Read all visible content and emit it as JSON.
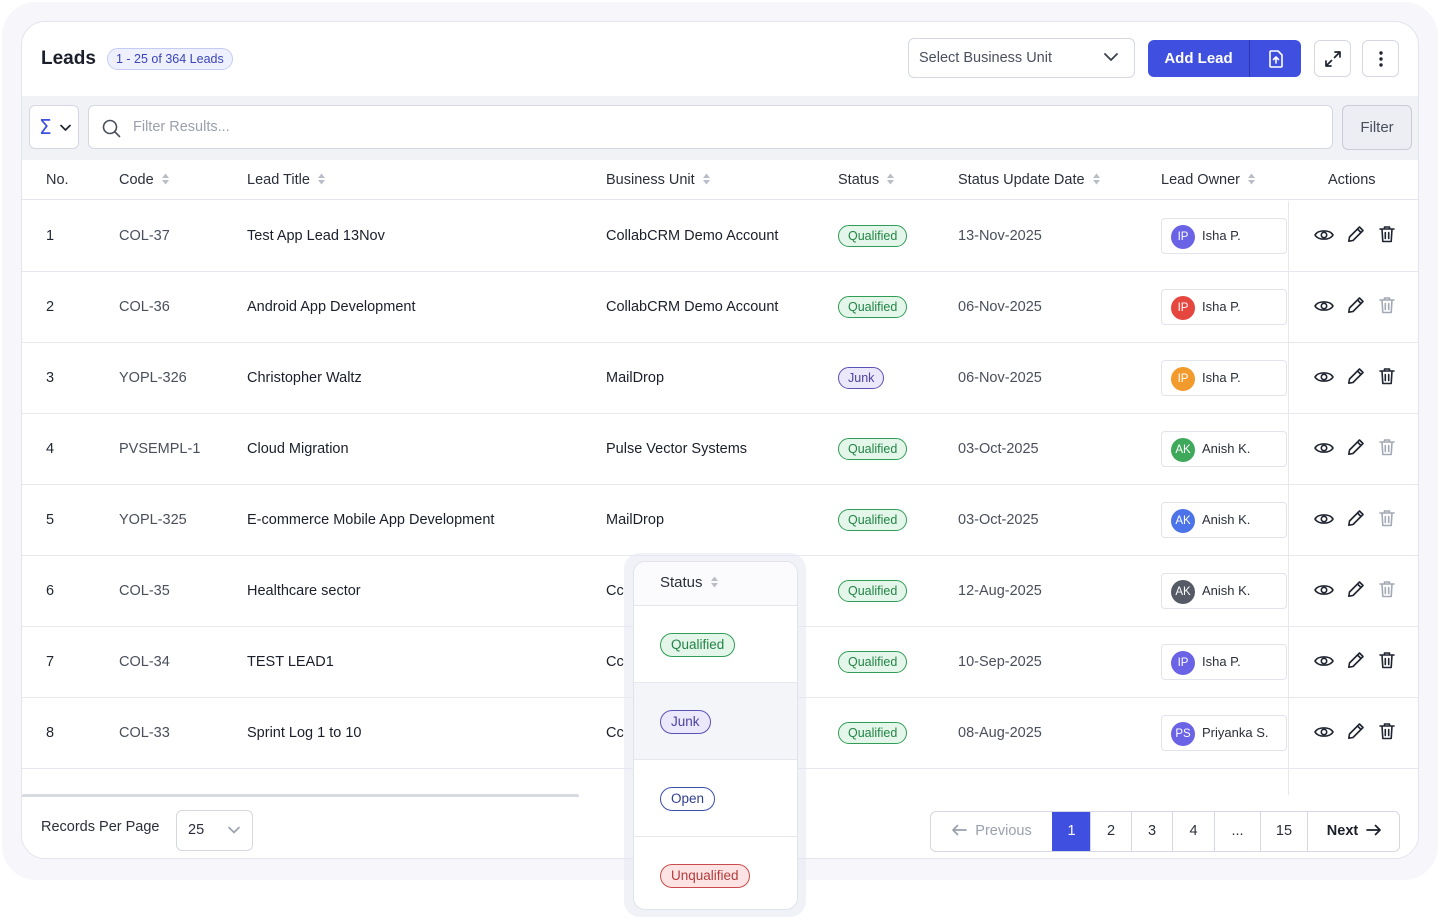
{
  "header": {
    "title": "Leads",
    "count_badge": "1 - 25 of 364 Leads",
    "business_unit_placeholder": "Select Business Unit",
    "add_lead_label": "Add Lead"
  },
  "filter_bar": {
    "aggregate_symbol": "Σ",
    "search_placeholder": "Filter Results...",
    "filter_label": "Filter"
  },
  "table": {
    "columns": [
      "No.",
      "Code",
      "Lead Title",
      "Business Unit",
      "Status",
      "Status Update Date",
      "Lead Owner",
      "Actions"
    ],
    "rows": [
      {
        "no": "1",
        "code": "COL-37",
        "title": "Test App Lead 13Nov",
        "bu": "CollabCRM Demo Account",
        "status": "Qualified",
        "date": "13-Nov-2025",
        "owner_initials": "IP",
        "owner": "Isha P.",
        "avatar_color": "#6b63e6"
      },
      {
        "no": "2",
        "code": "COL-36",
        "title": "Android App Development",
        "bu": "CollabCRM Demo Account",
        "status": "Qualified",
        "date": "06-Nov-2025",
        "owner_initials": "IP",
        "owner": "Isha P.",
        "avatar_color": "#e5473f"
      },
      {
        "no": "3",
        "code": "YOPL-326",
        "title": "Christopher Waltz",
        "bu": "MailDrop",
        "status": "Junk",
        "date": "06-Nov-2025",
        "owner_initials": "IP",
        "owner": "Isha P.",
        "avatar_color": "#f39a2d"
      },
      {
        "no": "4",
        "code": "PVSEMPL-1",
        "title": "Cloud Migration",
        "bu": "Pulse Vector Systems",
        "status": "Qualified",
        "date": "03-Oct-2025",
        "owner_initials": "AK",
        "owner": "Anish K.",
        "avatar_color": "#3fa95b"
      },
      {
        "no": "5",
        "code": "YOPL-325",
        "title": "E-commerce Mobile App Development",
        "bu": "MailDrop",
        "status": "Qualified",
        "date": "03-Oct-2025",
        "owner_initials": "AK",
        "owner": "Anish K.",
        "avatar_color": "#4c74e8"
      },
      {
        "no": "6",
        "code": "COL-35",
        "title": "Healthcare sector",
        "bu": "Cc",
        "status": "Qualified",
        "date": "12-Aug-2025",
        "owner_initials": "AK",
        "owner": "Anish K.",
        "avatar_color": "#555a66"
      },
      {
        "no": "7",
        "code": "COL-34",
        "title": "TEST LEAD1",
        "bu": "Cc",
        "status": "Qualified",
        "date": "10-Sep-2025",
        "owner_initials": "IP",
        "owner": "Isha P.",
        "avatar_color": "#6b63e6"
      },
      {
        "no": "8",
        "code": "COL-33",
        "title": "Sprint Log 1 to 10",
        "bu": "Cc",
        "status": "Qualified",
        "date": "08-Aug-2025",
        "owner_initials": "PS",
        "owner": "Priyanka S.",
        "avatar_color": "#6b63e6"
      }
    ]
  },
  "footer": {
    "records_label": "Records Per Page",
    "records_value": "25",
    "pagination": {
      "previous": "Previous",
      "pages": [
        "1",
        "2",
        "3",
        "4",
        "...",
        "15"
      ],
      "active": "1",
      "next": "Next"
    }
  },
  "status_dropdown": {
    "title": "Status",
    "options": [
      "Qualified",
      "Junk",
      "Open",
      "Unqualified"
    ],
    "hovered": "Junk"
  },
  "colors": {
    "accent": "#3f4fe0",
    "qualified": "#238446",
    "junk": "#4a42a2",
    "open": "#2f3f90",
    "unqualified": "#b13c3c"
  },
  "icons": {
    "chevron": "chevron-down-icon",
    "upload": "upload-icon",
    "expand": "expand-icon",
    "more": "more-vertical-icon",
    "search": "search-icon",
    "sort": "sort-icon",
    "view": "eye-icon",
    "edit": "pencil-icon",
    "delete": "trash-icon",
    "prev": "arrow-left-icon",
    "next": "arrow-right-icon"
  }
}
